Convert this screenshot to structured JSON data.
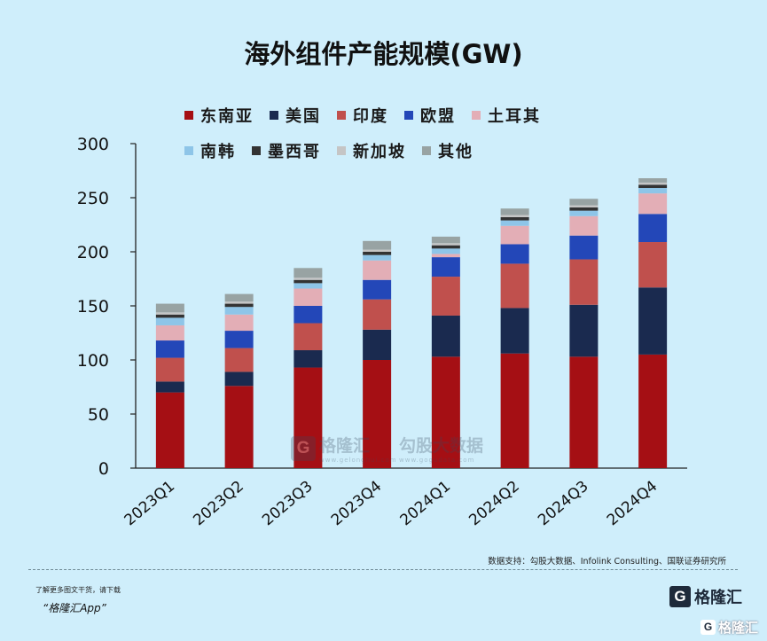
{
  "chart_data": {
    "type": "bar",
    "stacked": true,
    "title": "海外组件产能规模(GW)",
    "categories": [
      "2023Q1",
      "2023Q2",
      "2023Q3",
      "2023Q4",
      "2024Q1",
      "2024Q2",
      "2024Q3",
      "2024Q4"
    ],
    "ylim": [
      0,
      300
    ],
    "yticks": [
      0,
      50,
      100,
      150,
      200,
      250,
      300
    ],
    "grid": false,
    "legend_position": "top",
    "series": [
      {
        "name": "东南亚",
        "color": "#a50f14",
        "values": [
          70,
          76,
          93,
          100,
          103,
          106,
          103,
          105
        ]
      },
      {
        "name": "美国",
        "color": "#1a2a4f",
        "values": [
          10,
          13,
          16,
          28,
          38,
          42,
          48,
          62
        ]
      },
      {
        "name": "印度",
        "color": "#c0504d",
        "values": [
          22,
          22,
          25,
          28,
          36,
          41,
          42,
          42
        ]
      },
      {
        "name": "欧盟",
        "color": "#2347b8",
        "values": [
          16,
          16,
          16,
          18,
          18,
          18,
          22,
          26
        ]
      },
      {
        "name": "土耳其",
        "color": "#e3aeb6",
        "values": [
          14,
          15,
          16,
          18,
          3,
          17,
          18,
          19
        ]
      },
      {
        "name": "南韩",
        "color": "#8ec5e8",
        "values": [
          7,
          7,
          5,
          5,
          5,
          5,
          5,
          5
        ]
      },
      {
        "name": "墨西哥",
        "color": "#333333",
        "values": [
          3,
          3,
          3,
          3,
          3,
          3,
          3,
          3
        ]
      },
      {
        "name": "新加坡",
        "color": "#c5c5c5",
        "values": [
          2,
          2,
          2,
          2,
          2,
          2,
          2,
          2
        ]
      },
      {
        "name": "其他",
        "color": "#98a3a3",
        "values": [
          8,
          7,
          9,
          8,
          6,
          6,
          6,
          4
        ]
      }
    ]
  },
  "legend_rows": [
    [
      {
        "label": "东南亚",
        "color": "#a50f14"
      },
      {
        "label": "美国",
        "color": "#1a2a4f"
      },
      {
        "label": "印度",
        "color": "#c0504d"
      },
      {
        "label": "欧盟",
        "color": "#2347b8"
      },
      {
        "label": "土耳其",
        "color": "#e3aeb6"
      }
    ],
    [
      {
        "label": "南韩",
        "color": "#8ec5e8"
      },
      {
        "label": "墨西哥",
        "color": "#333333"
      },
      {
        "label": "新加坡",
        "color": "#c5c5c5"
      },
      {
        "label": "其他",
        "color": "#98a3a3"
      }
    ]
  ],
  "source": "数据支持：勾股大数据、Infolink Consulting、国联证券研究所",
  "footer": {
    "promo": "了解更多图文干货，请下载",
    "app_name": "“格隆汇App”",
    "logo_letter": "G",
    "logo_text": "格隆汇"
  },
  "watermark": {
    "left_brand": "格隆汇",
    "left_sub": "www.gelonghui.com",
    "right_brand": "勾股大数据",
    "right_sub": "www.gogudata.com",
    "corner_text": "格隆汇"
  }
}
